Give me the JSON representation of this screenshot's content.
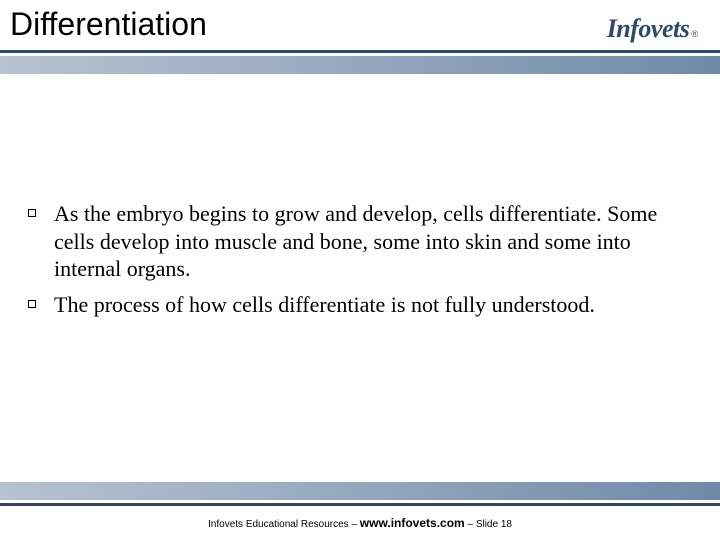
{
  "slide": {
    "title": "Differentiation",
    "logo_text": "Infovets",
    "logo_reg": "®",
    "bullets": [
      "As the embryo begins to grow and develop, cells differentiate. Some cells develop into muscle and bone, some into skin and some into internal organs.",
      "The process of how cells differentiate is not fully understood."
    ],
    "footer_prefix": "Infovets Educational Resources – ",
    "footer_url": "www.infovets.com",
    "footer_suffix": " – Slide 18"
  },
  "colors": {
    "brand": "#2e4a6a",
    "band_start": "#b7c2d0",
    "band_mid": "#9fb0c4",
    "band_end": "#6f8aa8",
    "background": "#ffffff"
  },
  "typography": {
    "title_fontsize": 32,
    "body_fontsize": 22,
    "logo_fontsize": 26,
    "footer_fontsize": 10,
    "footer_url_fontsize": 12
  }
}
